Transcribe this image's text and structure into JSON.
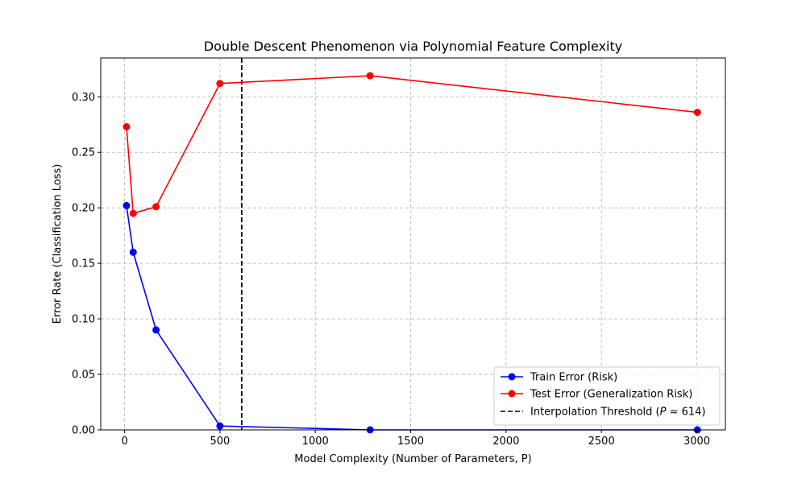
{
  "chart_data": {
    "type": "line",
    "title": "Double Descent Phenomenon via Polynomial Feature Complexity",
    "xlabel": "Model Complexity (Number of Parameters, P)",
    "ylabel": "Error Rate (Classification Loss)",
    "xlim": [
      -125,
      3150
    ],
    "ylim": [
      0.0,
      0.335
    ],
    "xticks": [
      0,
      500,
      1000,
      1500,
      2000,
      2500,
      3000
    ],
    "yticks": [
      0.0,
      0.05,
      0.1,
      0.15,
      0.2,
      0.25,
      0.3
    ],
    "xtick_labels": [
      "0",
      "500",
      "1000",
      "1500",
      "2000",
      "2500",
      "3000"
    ],
    "ytick_labels": [
      "0.00",
      "0.05",
      "0.10",
      "0.15",
      "0.20",
      "0.25",
      "0.30"
    ],
    "grid": true,
    "legend_position": "bottom-right",
    "series": [
      {
        "name": "Train Error (Risk)",
        "color": "#0000ff",
        "x": [
          10,
          45,
          165,
          500,
          1287,
          3003
        ],
        "y": [
          0.202,
          0.16,
          0.09,
          0.0035,
          0.0,
          0.0
        ]
      },
      {
        "name": "Test Error (Generalization Risk)",
        "color": "#ff0000",
        "x": [
          10,
          45,
          165,
          500,
          1287,
          3003
        ],
        "y": [
          0.273,
          0.195,
          0.201,
          0.312,
          0.319,
          0.286
        ]
      }
    ],
    "reference_line": {
      "type": "vertical",
      "x": 614,
      "style": "dashed",
      "color": "#000000",
      "legend_prefix": "Interpolation Threshold (",
      "legend_symbol": "P",
      "legend_suffix": " ≈ 614)"
    }
  }
}
